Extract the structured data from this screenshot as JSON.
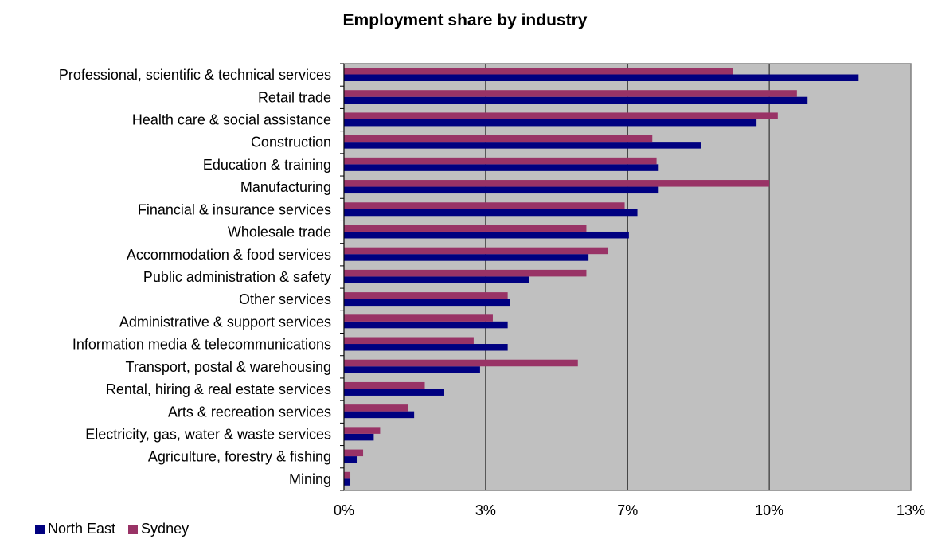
{
  "chart_data": {
    "type": "bar",
    "orientation": "horizontal",
    "title": "Employment share by industry",
    "categories": [
      "Professional, scientific & technical services",
      "Retail trade",
      "Health care & social assistance",
      "Construction",
      "Education & training",
      "Manufacturing",
      "Financial & insurance services",
      "Wholesale trade",
      "Accommodation & food services",
      "Public administration & safety",
      "Other services",
      "Administrative & support services",
      "Information media & telecommunications",
      "Transport, postal & warehousing",
      "Rental, hiring & real estate services",
      "Arts & recreation services",
      "Electricity, gas, water & waste services",
      "Agriculture, forestry & fishing",
      "Mining"
    ],
    "series": [
      {
        "name": "North East",
        "color": "#000080",
        "values": [
          12.1,
          10.9,
          9.7,
          8.4,
          7.4,
          7.4,
          6.9,
          6.7,
          5.75,
          4.35,
          3.9,
          3.85,
          3.85,
          3.2,
          2.35,
          1.65,
          0.7,
          0.3,
          0.15
        ]
      },
      {
        "name": "Sydney",
        "color": "#993366",
        "values": [
          9.15,
          10.65,
          10.2,
          7.25,
          7.35,
          10.0,
          6.6,
          5.7,
          6.2,
          5.7,
          3.85,
          3.5,
          3.05,
          5.5,
          1.9,
          1.5,
          0.85,
          0.45,
          0.15
        ]
      }
    ],
    "xlim": [
      0,
      13.33
    ],
    "ticks": [
      "0%",
      "3%",
      "7%",
      "10%",
      "13%"
    ],
    "tick_values": [
      0,
      3.33,
      6.67,
      10.0,
      13.33
    ],
    "grid": true,
    "plot_background": "#C0C0C0",
    "legend_position": "bottom-left"
  }
}
